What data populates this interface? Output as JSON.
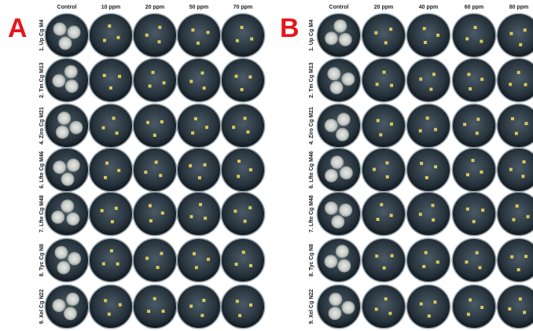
{
  "panels": [
    {
      "label": "A",
      "columns": [
        "Control",
        "10 ppm",
        "20 ppm",
        "50 ppm",
        "70 ppm"
      ],
      "rows": [
        "1. Up Cg M4",
        "2. Tm Cg M13",
        "4. Ziro Cg M21",
        "6. Lfte Cg M46",
        "7. Lfte Cg M48",
        "8. Tyc Cg N8",
        "9. Xel Cg N22"
      ]
    },
    {
      "label": "B",
      "columns": [
        "Control",
        "20 ppm",
        "40 ppm",
        "60 ppm",
        "80 ppm"
      ],
      "rows": [
        "1. Up Cg M4",
        "2. Tm Cg M13",
        "4. Ziro Cg M21",
        "6. Lfte Cg M46",
        "7. Lfte Cg M48",
        "8. Tyc Cg N8",
        "9. Xel Cg N22"
      ]
    }
  ]
}
